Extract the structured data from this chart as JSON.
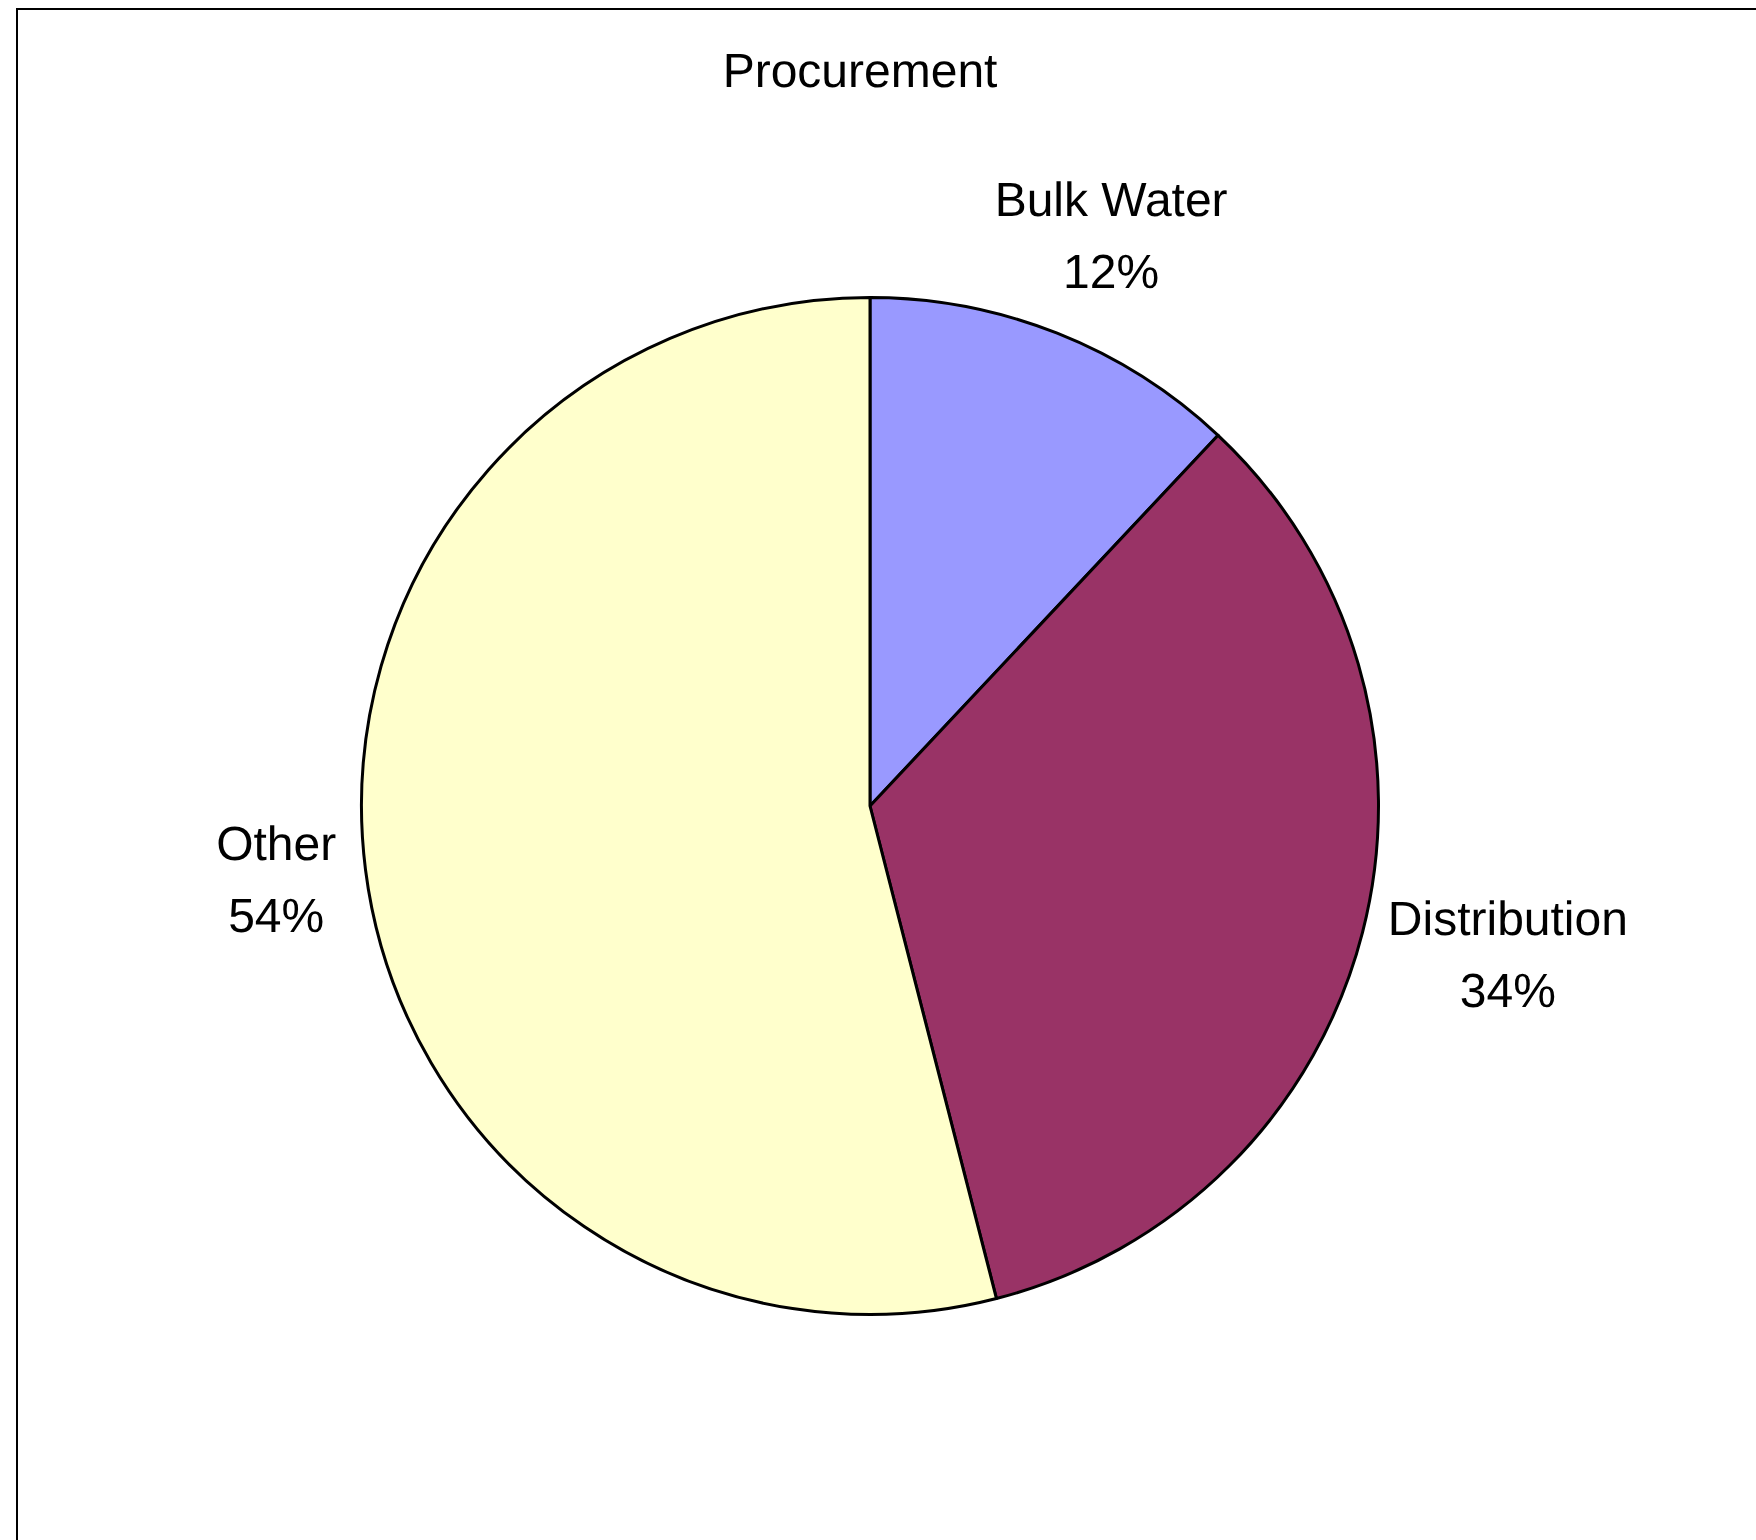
{
  "chart_data": {
    "type": "pie",
    "title": "Procurement",
    "categories": [
      "Bulk Water",
      "Distribution",
      "Other"
    ],
    "values": [
      12,
      34,
      54
    ],
    "value_labels": [
      "12%",
      "34%",
      "54%"
    ],
    "colors": [
      "#9999ff",
      "#993366",
      "#ffffcc"
    ]
  }
}
